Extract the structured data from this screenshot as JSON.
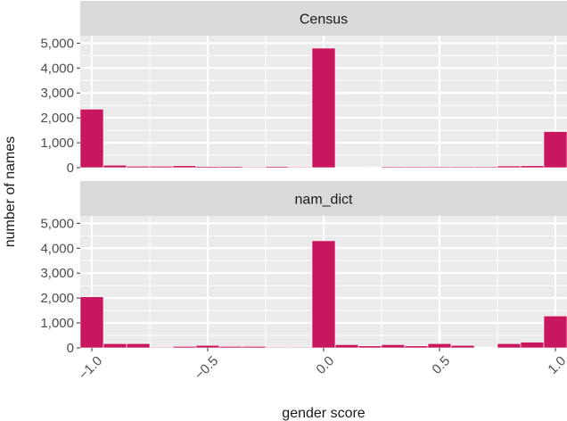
{
  "chart_data": {
    "type": "bar",
    "xlabel": "gender score",
    "ylabel": "number of names",
    "xlim": [
      -1.05,
      1.05
    ],
    "ylim": [
      0,
      5300
    ],
    "x_ticks": [
      -1.0,
      -0.5,
      0.0,
      0.5,
      1.0
    ],
    "x_tick_labels": [
      "−1.0",
      "−0.5",
      "0.0",
      "0.5",
      "1.0"
    ],
    "y_ticks": [
      0,
      1000,
      2000,
      3000,
      4000,
      5000
    ],
    "y_tick_labels": [
      "0",
      "1,000",
      "2,000",
      "3,000",
      "4,000",
      "5,000"
    ],
    "bin_width": 0.1,
    "bin_centers": [
      -1.0,
      -0.9,
      -0.8,
      -0.7,
      -0.6,
      -0.5,
      -0.4,
      -0.3,
      -0.2,
      -0.1,
      0.0,
      0.1,
      0.2,
      0.3,
      0.4,
      0.5,
      0.6,
      0.7,
      0.8,
      0.9,
      1.0
    ],
    "bar_color": "#C8175E",
    "panel_background": "#EBEBEB",
    "strip_background": "#D9D9D9",
    "grid": true,
    "panels": [
      {
        "name": "Census",
        "values": [
          2350,
          100,
          60,
          60,
          80,
          50,
          50,
          30,
          50,
          30,
          4800,
          20,
          20,
          40,
          40,
          40,
          40,
          40,
          70,
          80,
          1450
        ]
      },
      {
        "name": "nam_dict",
        "values": [
          2050,
          170,
          170,
          30,
          60,
          100,
          60,
          60,
          30,
          30,
          4300,
          130,
          80,
          130,
          80,
          170,
          100,
          10,
          170,
          230,
          1280
        ]
      }
    ]
  }
}
